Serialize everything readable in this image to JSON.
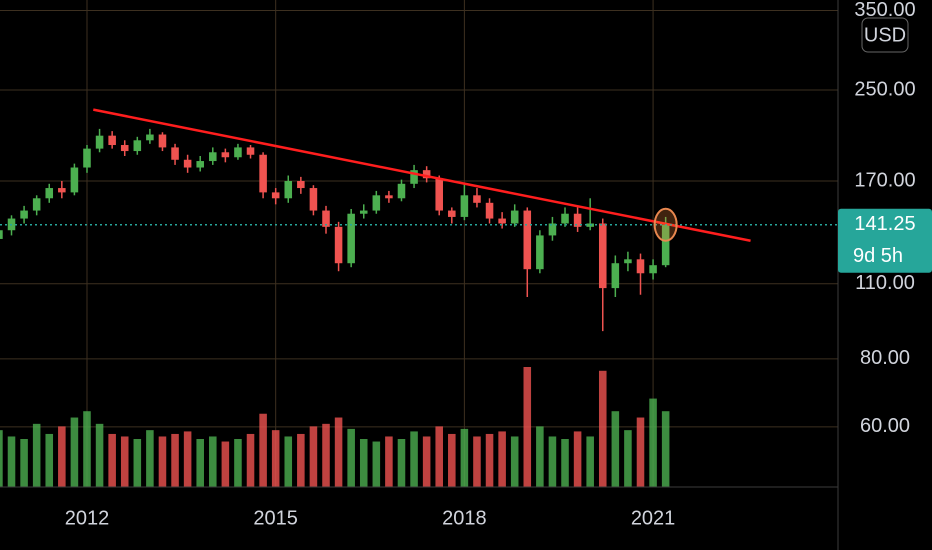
{
  "chart_data": {
    "type": "candlestick",
    "log_scale": true,
    "grid": true,
    "currency": "USD",
    "countdown": "9d 5h",
    "up_color": "#4caf50",
    "down_color": "#ef5350",
    "trendline_color": "#ff1e1e",
    "price_line_color": "#26a69a",
    "xlim": [
      2010.617,
      2023.94
    ],
    "xticks": [
      2012,
      2015,
      2018,
      2021
    ],
    "ylim": [
      46.5,
      366
    ],
    "yticks": [
      {
        "value": 60,
        "label": "60.00"
      },
      {
        "value": 80,
        "label": "80.00"
      },
      {
        "value": 110,
        "label": "110.00"
      },
      {
        "value": 170,
        "label": "170.00"
      },
      {
        "value": 250,
        "label": "250.00"
      },
      {
        "value": 350,
        "label": "350.00"
      }
    ],
    "x": [
      2010.6,
      2010.8,
      2011.0,
      2011.2,
      2011.4,
      2011.6,
      2011.8,
      2012.0,
      2012.2,
      2012.4,
      2012.6,
      2012.8,
      2013.0,
      2013.2,
      2013.4,
      2013.6,
      2013.8,
      2014.0,
      2014.2,
      2014.4,
      2014.6,
      2014.8,
      2015.0,
      2015.2,
      2015.4,
      2015.6,
      2015.8,
      2016.0,
      2016.2,
      2016.4,
      2016.6,
      2016.8,
      2017.0,
      2017.2,
      2017.4,
      2017.6,
      2017.8,
      2018.0,
      2018.2,
      2018.4,
      2018.6,
      2018.8,
      2019.0,
      2019.2,
      2019.4,
      2019.6,
      2019.8,
      2020.0,
      2020.2,
      2020.4,
      2020.6,
      2020.8,
      2021.0,
      2021.2
    ],
    "open": [
      133,
      138,
      145,
      150,
      158,
      165,
      162,
      180,
      195,
      206,
      198,
      193,
      202,
      207,
      196,
      186,
      180,
      185,
      192,
      188,
      196,
      190,
      162,
      158,
      170,
      165,
      150,
      140,
      120,
      148,
      150,
      160,
      158,
      168,
      178,
      172,
      150,
      146,
      160,
      155,
      145,
      142,
      150,
      117,
      135,
      142,
      148,
      140,
      142,
      108,
      120,
      122,
      115,
      119
    ],
    "high": [
      140,
      147,
      153,
      160,
      168,
      170,
      183,
      198,
      212,
      210,
      202,
      205,
      212,
      209,
      199,
      190,
      189,
      196,
      195,
      199,
      198,
      192,
      165,
      174,
      173,
      167,
      153,
      143,
      151,
      154,
      163,
      163,
      171,
      182,
      181,
      174,
      152,
      168,
      165,
      158,
      149,
      154,
      152,
      138,
      146,
      152,
      152,
      158,
      145,
      124,
      126,
      125,
      122,
      146
    ],
    "low": [
      130,
      135,
      142,
      147,
      155,
      158,
      160,
      176,
      192,
      195,
      189,
      190,
      199,
      193,
      182,
      176,
      177,
      182,
      184,
      186,
      187,
      158,
      154,
      155,
      161,
      147,
      136,
      116,
      118,
      145,
      148,
      155,
      156,
      165,
      169,
      147,
      142,
      144,
      152,
      142,
      139,
      140,
      104,
      115,
      132,
      140,
      137,
      138,
      90,
      104,
      116,
      105,
      112,
      118
    ],
    "close": [
      138,
      145,
      150,
      158,
      165,
      162,
      180,
      195,
      206,
      198,
      193,
      202,
      207,
      196,
      186,
      180,
      185,
      192,
      188,
      196,
      190,
      162,
      158,
      170,
      165,
      150,
      140,
      120,
      148,
      150,
      160,
      158,
      168,
      178,
      172,
      150,
      146,
      160,
      155,
      145,
      142,
      150,
      117,
      135,
      142,
      148,
      140,
      142,
      108,
      120,
      122,
      115,
      119,
      141.25
    ],
    "volume": [
      45,
      40,
      38,
      50,
      42,
      48,
      55,
      60,
      50,
      42,
      40,
      38,
      45,
      40,
      42,
      44,
      38,
      40,
      36,
      38,
      42,
      58,
      45,
      40,
      42,
      48,
      50,
      55,
      46,
      38,
      36,
      40,
      38,
      44,
      40,
      48,
      42,
      46,
      40,
      42,
      44,
      40,
      95,
      48,
      40,
      38,
      44,
      40,
      92,
      60,
      45,
      55,
      70,
      60
    ],
    "trendline": {
      "x": [
        2012.1,
        2022.55
      ],
      "y": [
        230,
        132
      ]
    }
  }
}
